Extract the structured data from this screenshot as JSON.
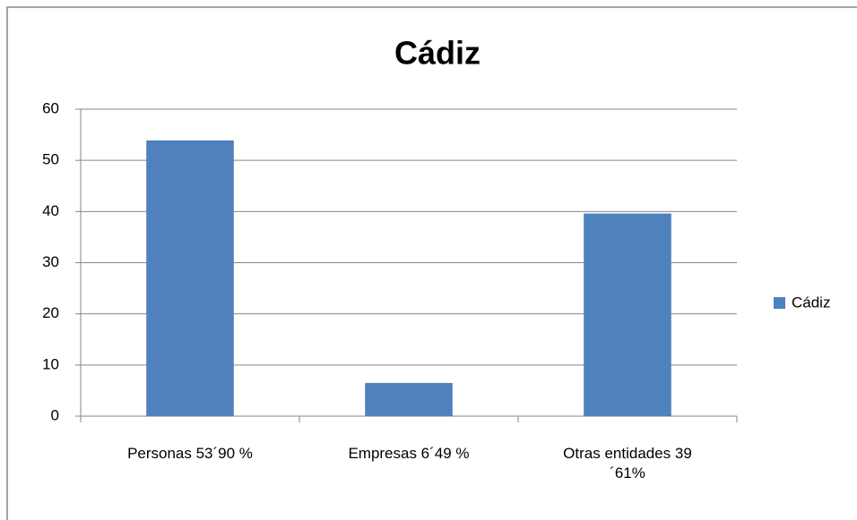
{
  "chart_data": {
    "type": "bar",
    "title": "Cádiz",
    "categories": [
      "Personas 53´90 %",
      "Empresas 6´49 %",
      "Otras entidades 39´61%"
    ],
    "series": [
      {
        "name": "Cádiz",
        "color": "#4f81bd",
        "values": [
          53.9,
          6.49,
          39.61
        ]
      }
    ],
    "ylim": [
      0,
      60
    ],
    "yticks": [
      0,
      10,
      20,
      30,
      40,
      50,
      60
    ],
    "grid": true,
    "legend": "right"
  }
}
